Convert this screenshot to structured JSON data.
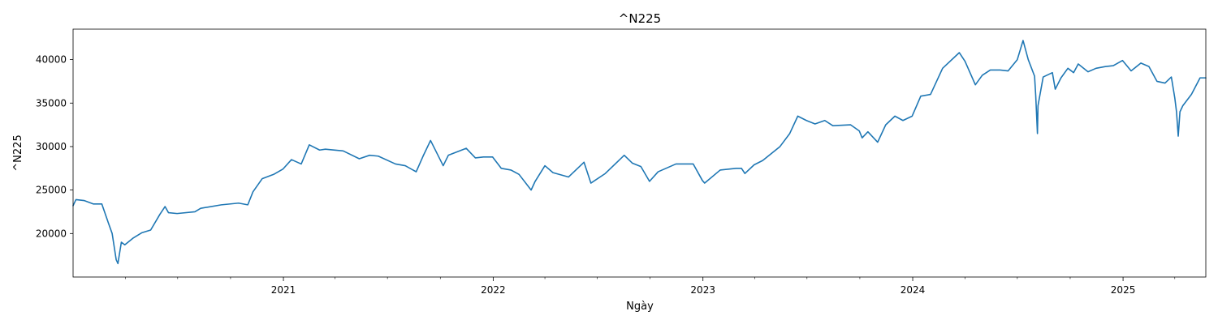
{
  "chart_data": {
    "type": "line",
    "title": "^N225",
    "xlabel": "Ngày",
    "ylabel": "^N225",
    "grid": false,
    "legend": "none",
    "x_range": [
      "2020-01-01",
      "2025-05-25"
    ],
    "ylim": [
      15000,
      43500
    ],
    "x_ticks": [
      {
        "date": "2021-01-01",
        "label": "2021"
      },
      {
        "date": "2022-01-01",
        "label": "2022"
      },
      {
        "date": "2023-01-01",
        "label": "2023"
      },
      {
        "date": "2024-01-01",
        "label": "2024"
      },
      {
        "date": "2025-01-01",
        "label": "2025"
      }
    ],
    "y_ticks": [
      20000,
      25000,
      30000,
      35000,
      40000
    ],
    "color": "#1f77b4",
    "series": [
      {
        "x": [
          "2020-01-01",
          "2020-01-06",
          "2020-01-20",
          "2020-02-05",
          "2020-02-20",
          "2020-03-02",
          "2020-03-09",
          "2020-03-16",
          "2020-03-19",
          "2020-03-25",
          "2020-03-31",
          "2020-04-15",
          "2020-04-30",
          "2020-05-15",
          "2020-05-31",
          "2020-06-09",
          "2020-06-15",
          "2020-06-30",
          "2020-07-31",
          "2020-08-10",
          "2020-09-15",
          "2020-10-15",
          "2020-10-31",
          "2020-11-09",
          "2020-11-25",
          "2020-12-15",
          "2020-12-31",
          "2021-01-15",
          "2021-02-01",
          "2021-02-15",
          "2021-03-05",
          "2021-03-15",
          "2021-04-15",
          "2021-05-13",
          "2021-05-31",
          "2021-06-15",
          "2021-07-15",
          "2021-08-01",
          "2021-08-20",
          "2021-09-01",
          "2021-09-14",
          "2021-10-06",
          "2021-10-15",
          "2021-11-15",
          "2021-12-01",
          "2021-12-15",
          "2021-12-31",
          "2022-01-15",
          "2022-02-01",
          "2022-02-15",
          "2022-03-08",
          "2022-03-15",
          "2022-04-01",
          "2022-04-15",
          "2022-05-12",
          "2022-06-08",
          "2022-06-20",
          "2022-07-15",
          "2022-08-17",
          "2022-08-31",
          "2022-09-15",
          "2022-09-30",
          "2022-10-15",
          "2022-11-15",
          "2022-12-01",
          "2022-12-15",
          "2022-12-31",
          "2023-01-04",
          "2023-01-31",
          "2023-02-28",
          "2023-03-09",
          "2023-03-15",
          "2023-03-31",
          "2023-04-15",
          "2023-05-15",
          "2023-06-01",
          "2023-06-15",
          "2023-06-30",
          "2023-07-15",
          "2023-08-01",
          "2023-08-15",
          "2023-09-15",
          "2023-09-30",
          "2023-10-05",
          "2023-10-15",
          "2023-11-01",
          "2023-11-15",
          "2023-12-01",
          "2023-12-15",
          "2023-12-31",
          "2024-01-15",
          "2024-02-01",
          "2024-02-22",
          "2024-03-22",
          "2024-04-01",
          "2024-04-19",
          "2024-05-01",
          "2024-05-15",
          "2024-06-01",
          "2024-06-15",
          "2024-07-01",
          "2024-07-11",
          "2024-07-20",
          "2024-07-31",
          "2024-08-02",
          "2024-08-05",
          "2024-08-06",
          "2024-08-15",
          "2024-08-31",
          "2024-09-05",
          "2024-09-15",
          "2024-09-27",
          "2024-10-07",
          "2024-10-15",
          "2024-11-01",
          "2024-11-15",
          "2024-12-01",
          "2024-12-15",
          "2024-12-31",
          "2025-01-15",
          "2025-02-01",
          "2025-02-15",
          "2025-03-01",
          "2025-03-15",
          "2025-03-26",
          "2025-04-01",
          "2025-04-04",
          "2025-04-07",
          "2025-04-10",
          "2025-04-15",
          "2025-04-30",
          "2025-05-15",
          "2025-05-25"
        ],
        "values": [
          23200,
          23900,
          23800,
          23400,
          23400,
          21300,
          20000,
          17000,
          16550,
          19000,
          18700,
          19500,
          20100,
          20400,
          22200,
          23100,
          22400,
          22300,
          22500,
          22900,
          23300,
          23500,
          23300,
          24800,
          26300,
          26800,
          27400,
          28500,
          28000,
          30200,
          29600,
          29700,
          29500,
          28600,
          29000,
          28900,
          28000,
          27800,
          27100,
          28900,
          30700,
          27800,
          29000,
          29800,
          28700,
          28800,
          28800,
          27500,
          27300,
          26800,
          25000,
          26000,
          27800,
          27000,
          26500,
          28200,
          25800,
          26900,
          29000,
          28100,
          27700,
          26000,
          27100,
          28000,
          28000,
          28000,
          26100,
          25800,
          27300,
          27500,
          27500,
          26900,
          27900,
          28400,
          30000,
          31500,
          33500,
          33000,
          32600,
          33000,
          32400,
          32500,
          31800,
          31000,
          31700,
          30500,
          32500,
          33500,
          33000,
          33500,
          35800,
          36000,
          39000,
          40800,
          39800,
          37100,
          38200,
          38800,
          38800,
          38700,
          40000,
          42200,
          40000,
          38100,
          35900,
          31500,
          34700,
          38000,
          38500,
          36600,
          37900,
          39000,
          38500,
          39500,
          38600,
          39000,
          39200,
          39300,
          39900,
          38700,
          39600,
          39200,
          37500,
          37300,
          38000,
          35600,
          34000,
          31200,
          34000,
          34700,
          36000,
          37900,
          37900
        ]
      }
    ]
  }
}
